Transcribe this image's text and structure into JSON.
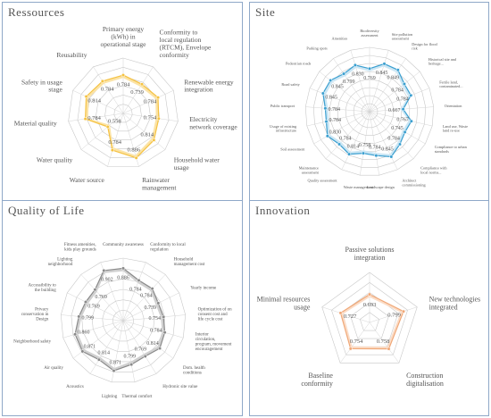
{
  "panels": [
    {
      "title": "Ressources"
    },
    {
      "title": "Site"
    },
    {
      "title": "Quality of Life"
    },
    {
      "title": "Innovation"
    }
  ],
  "chart_data": [
    {
      "type": "radar",
      "title": "Ressources",
      "categories": [
        "Primary energy (kWh) in operational stage",
        "Conformity to local regulation (RTCM), Envelope conformity",
        "Renewable energy integration",
        "Electricity network coverage",
        "Household water usage",
        "Rainwater management",
        "Water source",
        "Water quality",
        "Material quality",
        "Safety in usage stage",
        "Reusability"
      ],
      "values": [
        0.784,
        0.739,
        0.784,
        0.754,
        0.814,
        0.886,
        0.784,
        0.558,
        0.784,
        0.814,
        0.784
      ],
      "labels": [
        "0.784",
        "0.739",
        "0.784",
        "0.754",
        "0.814",
        "0.886",
        "0.784",
        "0.558",
        "0.784",
        "0.814",
        "0.784"
      ],
      "rmin": 0.3,
      "rmax": 1.0,
      "rings": 6,
      "color": "#f5c242",
      "fill": "#fbe3a6"
    },
    {
      "type": "radar",
      "title": "Site",
      "categories": [
        "Biodiversity assessment",
        "Site pollution assessment",
        "Design for flood risk",
        "Historical site and heritage...",
        "Fertile land, contaminated...",
        "Orientation",
        "Land use, Waste land re-use",
        "Compliance to urban standards",
        "Compliance with local norms...",
        "Architect commissioning",
        "Landscape design",
        "Waste management",
        "Quality assessment",
        "Maintenance assessment",
        "Soil assessment",
        "Usage of existing infrastructure",
        "Public transport",
        "Road safety",
        "Pedestrian roads",
        "Parking spots",
        "Amenities"
      ],
      "values": [
        0.769,
        0.845,
        0.849,
        0.784,
        0.784,
        0.667,
        0.767,
        0.745,
        0.784,
        0.845,
        0.784,
        0.758,
        0.814,
        0.784,
        0.83,
        0.784,
        0.784,
        0.845,
        0.845,
        0.799,
        0.83
      ],
      "labels": [
        "0.769",
        "0.845",
        "0.849",
        "0.784",
        "0.784",
        "0.667",
        "0.767",
        "0.745",
        "0.784",
        "0.845",
        "0.784",
        "0.758",
        "0.814",
        "0.784",
        "0.830",
        "0.784",
        "0.784",
        "0.845",
        "0.845",
        "0.799",
        "0.830"
      ],
      "rmin": 0.3,
      "rmax": 1.0,
      "rings": 8,
      "color": "#3a9fd0",
      "fill": "#cbe6f4"
    },
    {
      "type": "radar",
      "title": "Quality of Life",
      "categories": [
        "Community awareness",
        "Conformity to local regulation",
        "Household management cost",
        "Yearly income",
        "Optimization of on consent cost and life cycle cost",
        "Interior circulation, program, movement encouragement",
        "Dom. health conditions",
        "Hydronic site value",
        "Thermal comfort",
        "Lighting",
        "Acoustics",
        "Air quality",
        "Neighborhood safety",
        "Privacy conservation in Design",
        "Accessibility to the building",
        "Lighting neighborhood",
        "Fitness amenities, kids play grounds"
      ],
      "values": [
        0.886,
        0.784,
        0.784,
        0.739,
        0.754,
        0.784,
        0.814,
        0.769,
        0.799,
        0.871,
        0.814,
        0.871,
        0.86,
        0.799,
        0.769,
        0.769,
        0.902
      ],
      "labels": [
        "0.886",
        "0.784",
        "0.784",
        "0.739",
        "0.754",
        "0.784",
        "0.814",
        "0.769",
        "0.799",
        "0.871",
        "0.814",
        "0.871",
        "0.860",
        "0.799",
        "0.769",
        "0.769",
        "0.902"
      ],
      "rmin": 0.3,
      "rmax": 1.0,
      "rings": 6,
      "color": "#8a8a8a",
      "fill": "#d0d0d0"
    },
    {
      "type": "radar",
      "title": "Innovation",
      "categories": [
        "Passive solutions integration",
        "New technologies integrated",
        "Construction digitalisation",
        "Baseline conformity",
        "Minimal resources usage"
      ],
      "values": [
        0.693,
        0.799,
        0.758,
        0.754,
        0.727
      ],
      "labels": [
        "0.693",
        "0.799",
        "0.758",
        "0.754",
        "0.727"
      ],
      "rmin": 0.3,
      "rmax": 1.0,
      "rings": 5,
      "color": "#f0a878",
      "fill": "#fbdcc6"
    }
  ]
}
